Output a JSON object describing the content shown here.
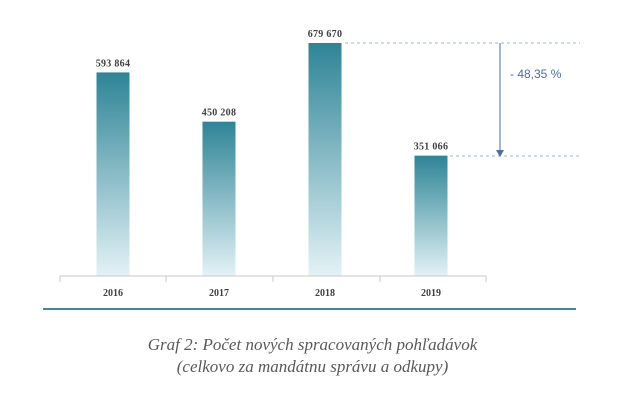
{
  "chart_data": {
    "type": "bar",
    "categories": [
      "2016",
      "2017",
      "2018",
      "2019"
    ],
    "values": [
      593864,
      450208,
      679670,
      351066
    ],
    "value_labels": [
      "593 864",
      "450 208",
      "679 670",
      "351 066"
    ],
    "annotation": "- 48,35 %",
    "title": "",
    "xlabel": "",
    "ylabel": "",
    "ylim": [
      0,
      679670
    ],
    "grid": false,
    "bar_gradient": [
      "#2e8496",
      "#e3f2f6"
    ],
    "annotation_color": "#4a6fa5"
  },
  "caption": {
    "line1": "Graf 2: Počet nových spracovaných pohľadávok",
    "line2": "(celkovo za mandátnu správu a odkupy)"
  }
}
